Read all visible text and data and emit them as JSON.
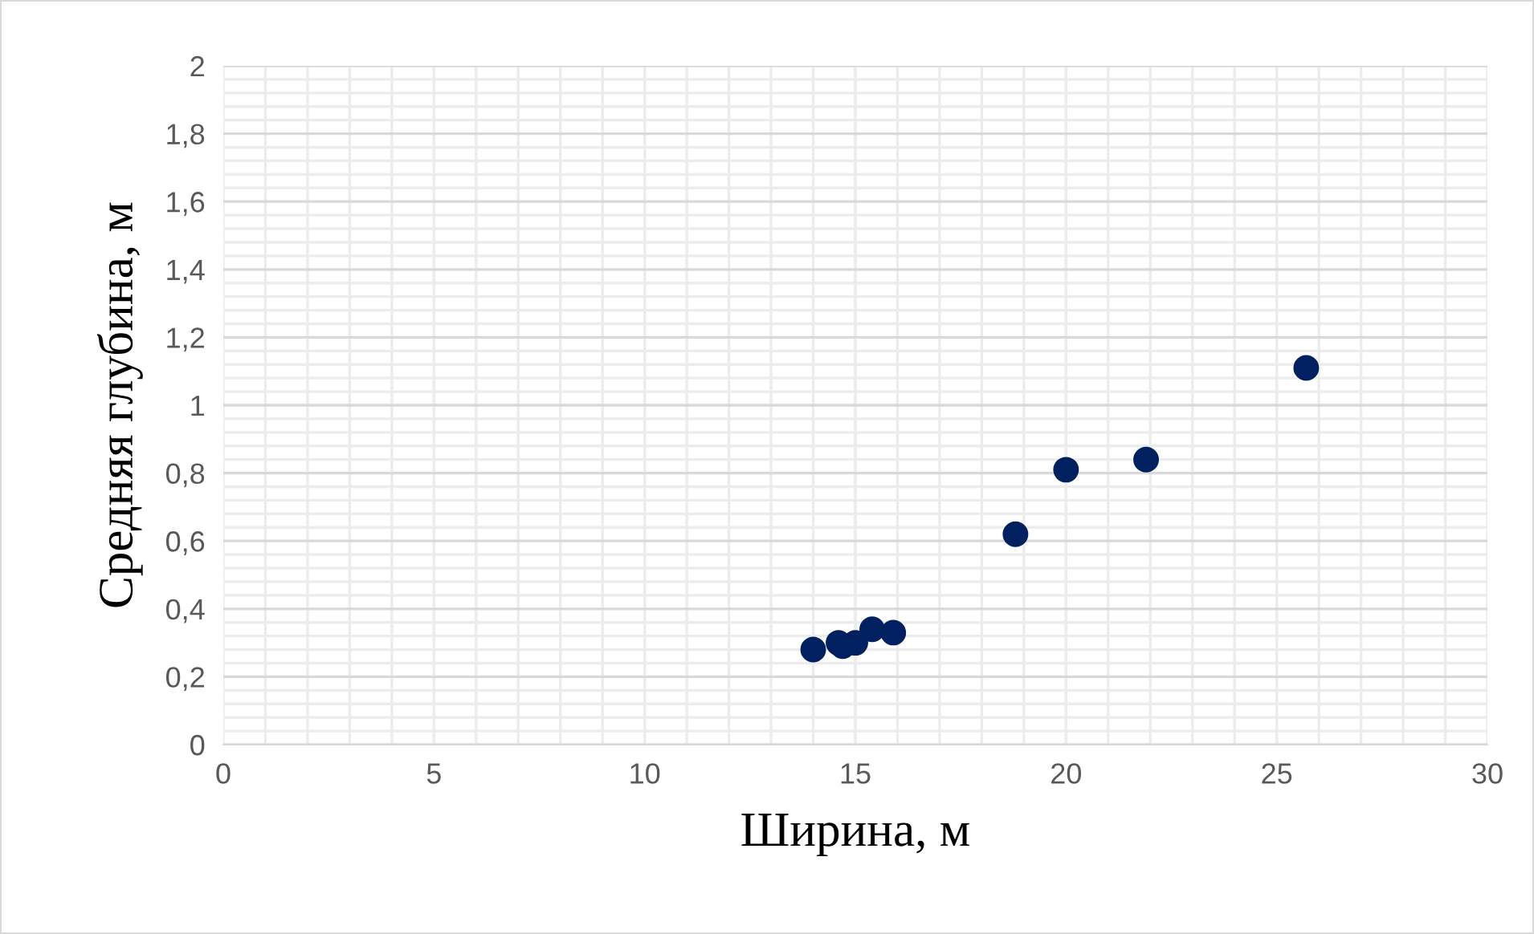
{
  "chart_data": {
    "type": "scatter",
    "xlabel": "Ширина, м",
    "ylabel": "Средняя глубина, м",
    "x": [
      14.0,
      14.6,
      14.7,
      15.0,
      15.4,
      15.9,
      18.8,
      20.0,
      21.9,
      25.7
    ],
    "series": [
      {
        "color": "#002060",
        "values": [
          0.28,
          0.3,
          0.29,
          0.3,
          0.34,
          0.33,
          0.62,
          0.81,
          0.84,
          1.11
        ]
      }
    ],
    "xlim": [
      0,
      30
    ],
    "xticks": [
      0,
      5,
      10,
      15,
      20,
      25,
      30
    ],
    "ylim": [
      0,
      2
    ],
    "yticks": [
      {
        "value": 0,
        "label": "0"
      },
      {
        "value": 0.2,
        "label": "0,2"
      },
      {
        "value": 0.4,
        "label": "0,4"
      },
      {
        "value": 0.6,
        "label": "0,6"
      },
      {
        "value": 0.8,
        "label": "0,8"
      },
      {
        "value": 1,
        "label": "1"
      },
      {
        "value": 1.2,
        "label": "1,2"
      },
      {
        "value": 1.4,
        "label": "1,4"
      },
      {
        "value": 1.6,
        "label": "1,6"
      },
      {
        "value": 1.8,
        "label": "1,8"
      },
      {
        "value": 2,
        "label": "2"
      }
    ],
    "grid": true,
    "marker": "circle"
  }
}
